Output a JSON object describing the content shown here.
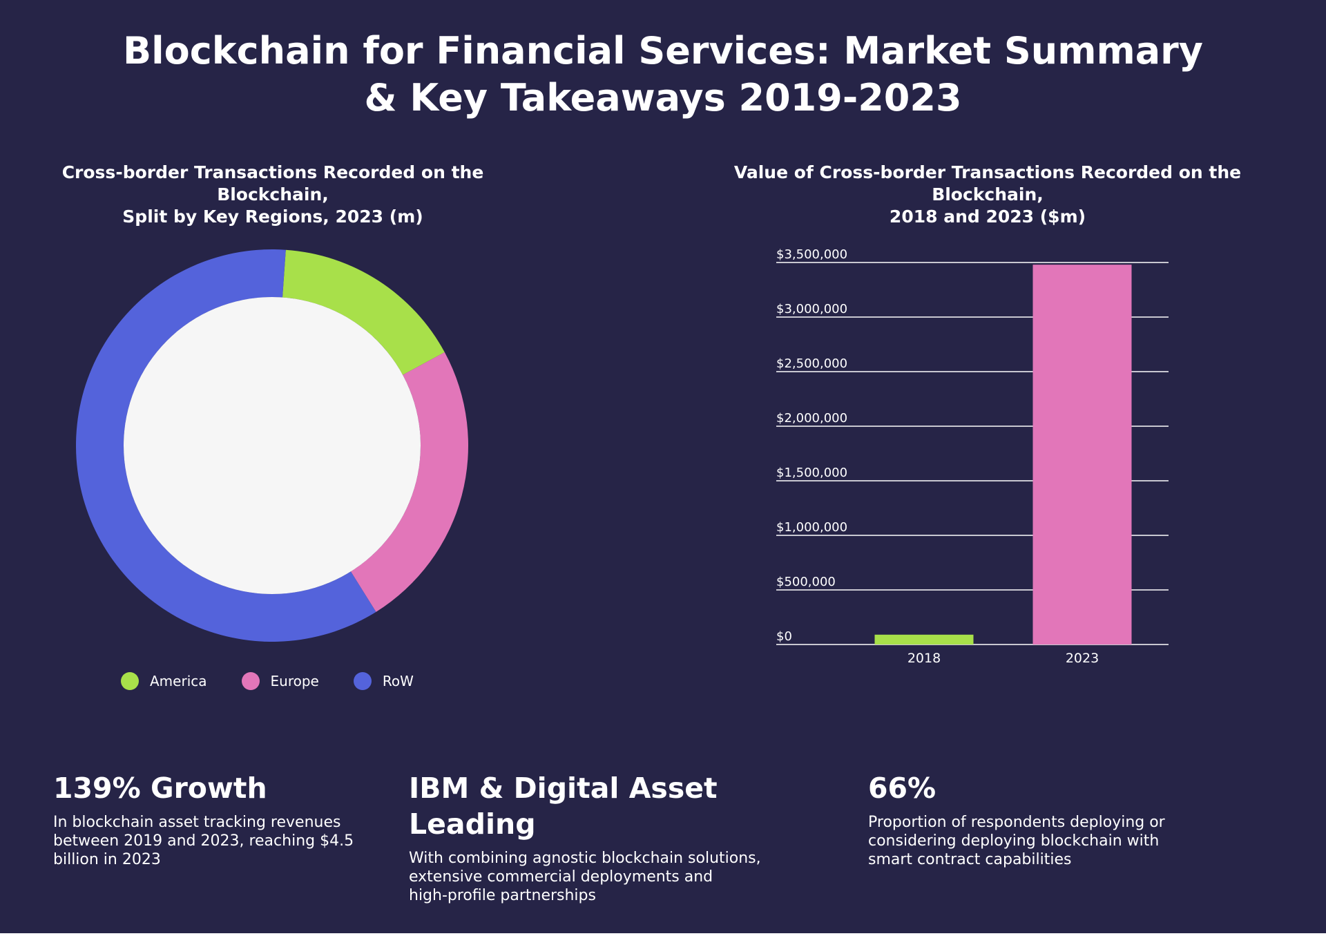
{
  "title_lines": [
    "Blockchain for Financial Services: Market Summary",
    "& Key Takeaways 2019-2023"
  ],
  "colors": {
    "background": "#262447",
    "america": "#a8e04a",
    "europe": "#e276b9",
    "row": "#5463db",
    "donut_center": "#f6f6f6"
  },
  "chart_data": [
    {
      "type": "pie",
      "title_lines": [
        "Cross-border Transactions Recorded on the Blockchain,",
        "Split by Key Regions, 2023 (m)"
      ],
      "categories": [
        "America",
        "Europe",
        "RoW"
      ],
      "values": [
        16,
        24,
        60
      ],
      "colors": [
        "#a8e04a",
        "#e276b9",
        "#5463db"
      ],
      "legend": "bottom"
    },
    {
      "type": "bar",
      "title_lines": [
        "Value of Cross-border Transactions Recorded on the Blockchain,",
        "2018 and 2023 ($m)"
      ],
      "categories": [
        "2018",
        "2023"
      ],
      "values": [
        90000,
        3480000
      ],
      "colors": [
        "#a8e04a",
        "#e276b9"
      ],
      "ylim": [
        0,
        3500000
      ],
      "yticks": [
        "$0",
        "$500,000",
        "$1,000,000",
        "$1,500,000",
        "$2,000,000",
        "$2,500,000",
        "$3,000,000",
        "$3,500,000"
      ],
      "grid": true
    }
  ],
  "takeaways": [
    {
      "heading": "139% Growth",
      "lines": [
        "In blockchain asset tracking revenues",
        "between 2019 and 2023, reaching $4.5",
        "billion in 2023"
      ]
    },
    {
      "heading": "IBM & Digital Asset Leading",
      "lines": [
        "With combining agnostic blockchain solutions,",
        "extensive commercial deployments and",
        "high-profile partnerships"
      ]
    },
    {
      "heading": "66%",
      "lines": [
        "Proportion of respondents deploying or",
        "considering deploying blockchain with",
        "smart contract capabilities"
      ]
    }
  ]
}
